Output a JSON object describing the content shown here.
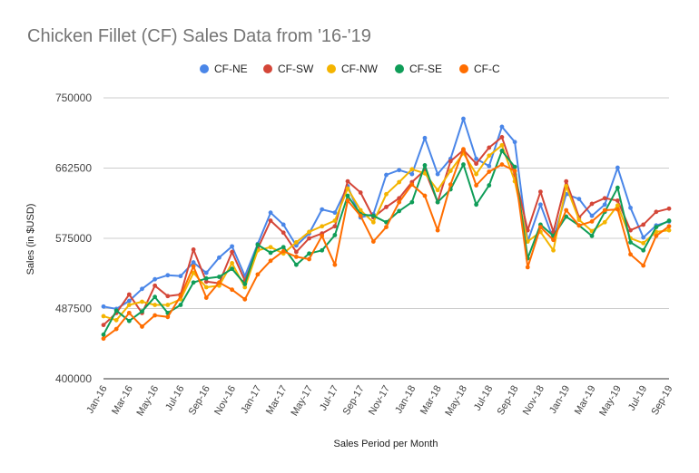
{
  "chart_data": {
    "type": "line",
    "title": "Chicken Fillet (CF) Sales Data from '16-'19",
    "xlabel": "Sales Period per Month",
    "ylabel": "Sales (in $USD)",
    "ylim": [
      400000,
      750000
    ],
    "yticks": [
      "400000",
      "487500",
      "575000",
      "662500",
      "750000"
    ],
    "legend_position": "top",
    "grid": true,
    "x_tick_labels": [
      "Jan-16",
      "Mar-16",
      "May-16",
      "Jul-16",
      "Sep-16",
      "Nov-16",
      "Jan-17",
      "Mar-17",
      "May-17",
      "Jul-17",
      "Sep-17",
      "Nov-17",
      "Jan-18",
      "Mar-18",
      "May-18",
      "Jul-18",
      "Sep-18",
      "Nov-18",
      "Jan-19",
      "Mar-19",
      "May-19",
      "Jul-19",
      "Sep-19"
    ],
    "x": [
      "Jan-16",
      "Feb-16",
      "Mar-16",
      "Apr-16",
      "May-16",
      "Jun-16",
      "Jul-16",
      "Aug-16",
      "Sep-16",
      "Oct-16",
      "Nov-16",
      "Dec-16",
      "Jan-17",
      "Feb-17",
      "Mar-17",
      "Apr-17",
      "May-17",
      "Jun-17",
      "Jul-17",
      "Aug-17",
      "Sep-17",
      "Oct-17",
      "Nov-17",
      "Dec-17",
      "Jan-18",
      "Feb-18",
      "Mar-18",
      "Apr-18",
      "May-18",
      "Jun-18",
      "Jul-18",
      "Aug-18",
      "Sep-18",
      "Oct-18",
      "Nov-18",
      "Dec-18",
      "Jan-19",
      "Feb-19",
      "Mar-19",
      "Apr-19",
      "May-19",
      "Jun-19",
      "Jul-19",
      "Aug-19",
      "Sep-19"
    ],
    "series": [
      {
        "name": "CF-NE",
        "color": "#4a86e8",
        "values": [
          490000,
          487000,
          497000,
          512000,
          524000,
          529000,
          528000,
          545000,
          532000,
          551000,
          565000,
          528000,
          568000,
          607000,
          592000,
          566000,
          581000,
          611000,
          607000,
          640000,
          601000,
          605000,
          654000,
          660000,
          655000,
          700000,
          655000,
          674000,
          724000,
          674000,
          665000,
          714000,
          695000,
          571000,
          617000,
          574000,
          630000,
          624000,
          603000,
          617000,
          663000,
          613000,
          576000,
          591000,
          596000
        ]
      },
      {
        "name": "CF-SW",
        "color": "#d44638",
        "values": [
          467000,
          482000,
          505000,
          482000,
          516000,
          503000,
          505000,
          561000,
          521000,
          519000,
          558000,
          522000,
          562000,
          597000,
          582000,
          558000,
          575000,
          581000,
          590000,
          646000,
          632000,
          601000,
          614000,
          625000,
          645000,
          660000,
          620000,
          671000,
          685000,
          668000,
          688000,
          701000,
          654000,
          585000,
          633000,
          583000,
          646000,
          601000,
          618000,
          625000,
          622000,
          585000,
          592000,
          608000,
          612000
        ]
      },
      {
        "name": "CF-NW",
        "color": "#f4b400",
        "values": [
          478000,
          473000,
          492000,
          496000,
          492000,
          492000,
          499000,
          532000,
          514000,
          516000,
          544000,
          514000,
          560000,
          564000,
          556000,
          570000,
          583000,
          590000,
          597000,
          637000,
          610000,
          595000,
          630000,
          645000,
          661000,
          656000,
          635000,
          659000,
          681000,
          655000,
          678000,
          691000,
          646000,
          571000,
          583000,
          560000,
          640000,
          598000,
          584000,
          595000,
          616000,
          575000,
          569000,
          583000,
          585000
        ]
      },
      {
        "name": "CF-SE",
        "color": "#0f9d58",
        "values": [
          455000,
          485000,
          472000,
          484000,
          502000,
          482000,
          492000,
          520000,
          525000,
          527000,
          537000,
          518000,
          567000,
          557000,
          564000,
          542000,
          556000,
          560000,
          579000,
          628000,
          605000,
          603000,
          595000,
          609000,
          620000,
          666000,
          620000,
          636000,
          667000,
          617000,
          641000,
          684000,
          664000,
          550000,
          592000,
          578000,
          602000,
          591000,
          578000,
          608000,
          638000,
          570000,
          560000,
          589000,
          597000
        ]
      },
      {
        "name": "CF-C",
        "color": "#ff6d00",
        "values": [
          450000,
          462000,
          482000,
          465000,
          479000,
          477000,
          503000,
          540000,
          501000,
          520000,
          511000,
          499000,
          530000,
          547000,
          559000,
          552000,
          549000,
          578000,
          542000,
          622000,
          603000,
          571000,
          589000,
          620000,
          642000,
          628000,
          585000,
          642000,
          686000,
          641000,
          658000,
          667000,
          659000,
          539000,
          589000,
          573000,
          610000,
          591000,
          596000,
          610000,
          611000,
          555000,
          541000,
          578000,
          590000
        ]
      }
    ]
  }
}
